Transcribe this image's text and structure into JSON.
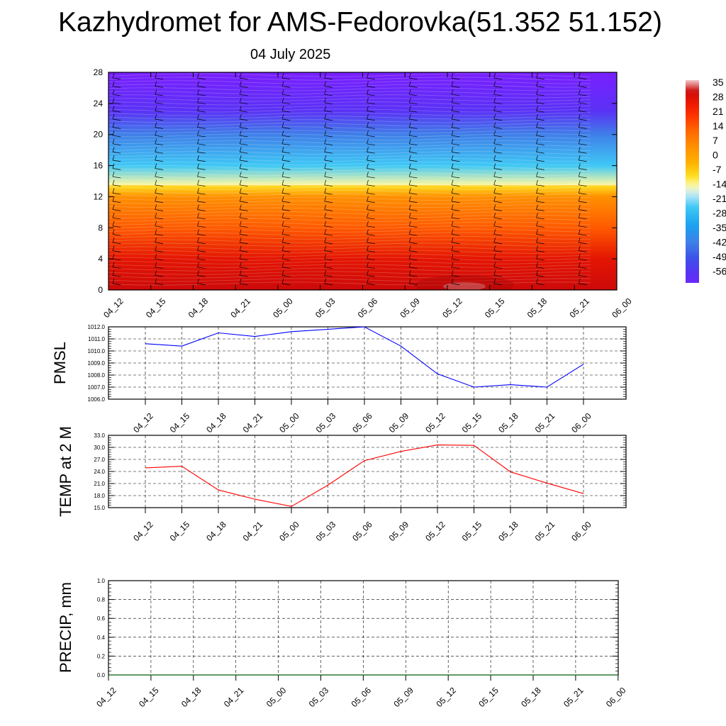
{
  "header": {
    "title": "Kazhydromet for AMS-Fedorovka(51.352 51.152)",
    "date": "04 July 2025"
  },
  "colors": {
    "pmsl_line": "#0000ff",
    "temp_line": "#ff0000",
    "precip_line": "#006400"
  },
  "chart_data": [
    {
      "type": "heatmap",
      "x_ticks": [
        "04_12",
        "04_15",
        "04_18",
        "04_21",
        "05_00",
        "05_03",
        "05_06",
        "05_09",
        "05_12",
        "05_15",
        "05_18",
        "05_21",
        "06_00"
      ],
      "y_ticks": [
        "0",
        "4",
        "8",
        "12",
        "16",
        "20",
        "24",
        "28"
      ],
      "ylim": [
        0,
        28
      ],
      "colorbar_labels": [
        "35",
        "28",
        "21",
        "14",
        "7",
        "0",
        "-7",
        "-14",
        "-21",
        "-28",
        "-35",
        "-42",
        "-49",
        "-56"
      ],
      "colorbar_range": [
        -56,
        35
      ],
      "value_profile": [
        {
          "y": 0,
          "v": 30
        },
        {
          "y": 4,
          "v": 26
        },
        {
          "y": 8,
          "v": 14
        },
        {
          "y": 12,
          "v": 5
        },
        {
          "y": 13.4,
          "v": -8
        },
        {
          "y": 16,
          "v": -22
        },
        {
          "y": 20,
          "v": -38
        },
        {
          "y": 23,
          "v": -52
        },
        {
          "y": 28,
          "v": -60
        }
      ],
      "has_wind_barbs": true
    },
    {
      "type": "line",
      "ylabel": "PMSL",
      "x": [
        "04_12",
        "04_15",
        "04_18",
        "04_21",
        "05_00",
        "05_03",
        "05_06",
        "05_09",
        "05_12",
        "05_15",
        "05_18",
        "05_21",
        "06_00"
      ],
      "y_ticks": [
        "1006.0",
        "1007.0",
        "1008.0",
        "1009.0",
        "1010.0",
        "1011.0",
        "1012.0"
      ],
      "ylim": [
        1006.0,
        1012.0
      ],
      "grid": true,
      "series": [
        {
          "values": [
            1010.6,
            1010.4,
            1011.5,
            1011.2,
            1011.6,
            1011.8,
            1012.0,
            1010.4,
            1008.1,
            1007.0,
            1007.2,
            1007.0,
            1008.9
          ]
        }
      ]
    },
    {
      "type": "line",
      "ylabel": "TEMP at 2 M",
      "x": [
        "04_12",
        "04_15",
        "04_18",
        "04_21",
        "05_00",
        "05_03",
        "05_06",
        "05_09",
        "05_12",
        "05_15",
        "05_18",
        "05_21",
        "06_00"
      ],
      "y_ticks": [
        "15.0",
        "18.0",
        "21.0",
        "24.0",
        "27.0",
        "30.0",
        "33.0"
      ],
      "ylim": [
        15.0,
        33.0
      ],
      "grid": true,
      "series": [
        {
          "values": [
            24.9,
            25.3,
            19.4,
            17.1,
            15.3,
            20.6,
            26.7,
            29.0,
            30.6,
            30.5,
            23.9,
            21.1,
            18.5
          ]
        }
      ]
    },
    {
      "type": "line",
      "ylabel": "PRECIP, mm",
      "x": [
        "04_12",
        "04_15",
        "04_18",
        "04_21",
        "05_00",
        "05_03",
        "05_06",
        "05_09",
        "05_12",
        "05_15",
        "05_18",
        "05_21",
        "06_00"
      ],
      "y_ticks": [
        "0.0",
        "0.2",
        "0.4",
        "0.6",
        "0.8",
        "1.0"
      ],
      "ylim": [
        0.0,
        1.0
      ],
      "grid": true,
      "series": [
        {
          "values": [
            0,
            0,
            0,
            0,
            0,
            0,
            0,
            0,
            0,
            0,
            0,
            0,
            0
          ]
        }
      ]
    }
  ]
}
